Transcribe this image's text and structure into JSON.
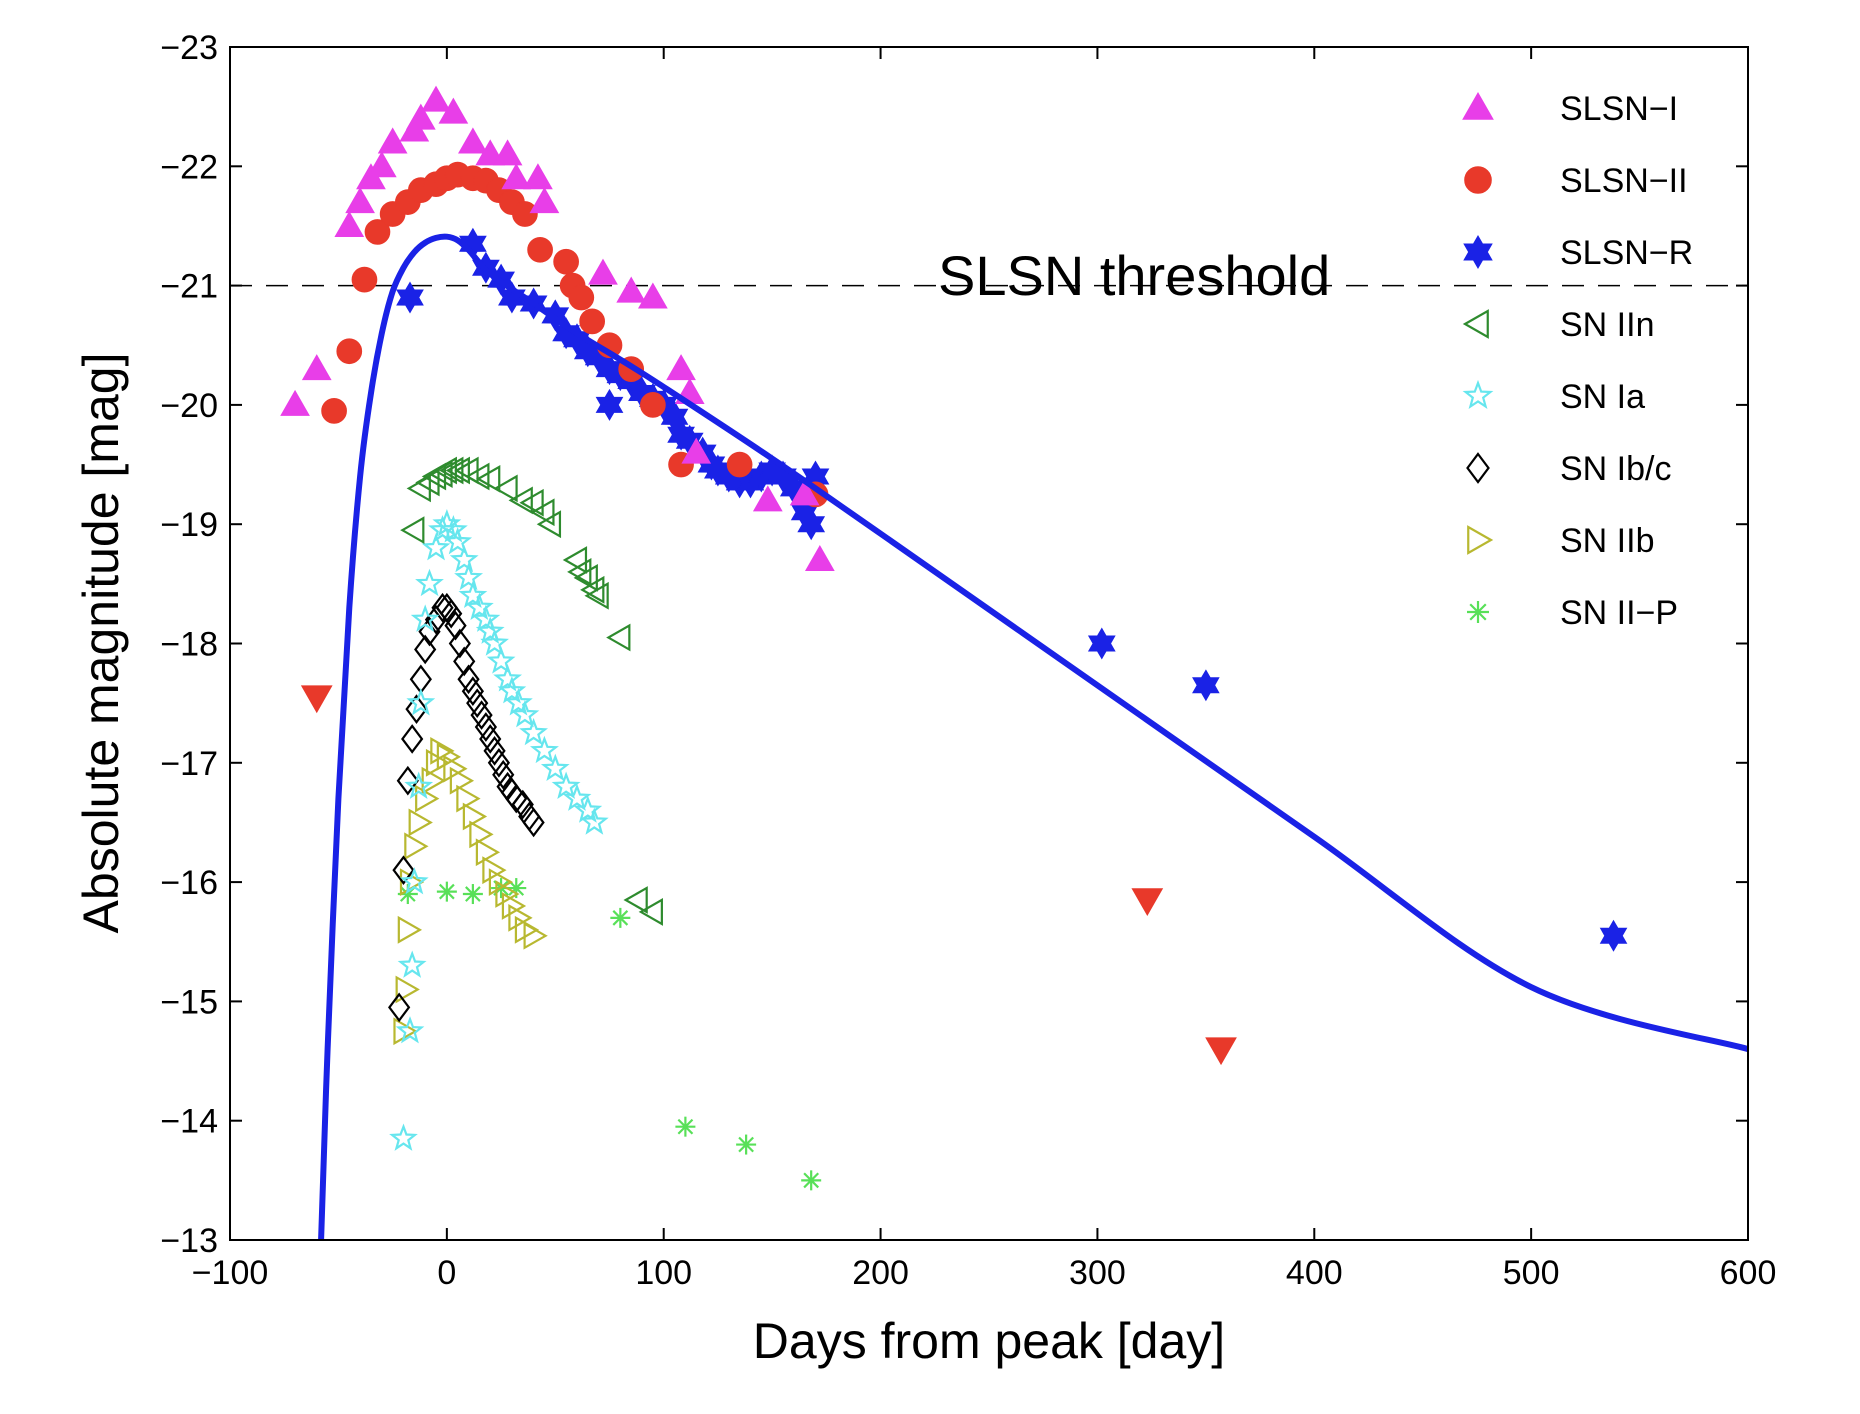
{
  "chart_data": {
    "type": "scatter",
    "xlabel": "Days from peak [day]",
    "ylabel": "Absolute magnitude [mag]",
    "xlim": [
      -100,
      600
    ],
    "ylim": [
      -13,
      -23
    ],
    "y_inverted": true,
    "grid": false,
    "legend_position": "top-right",
    "xticks": [
      -100,
      0,
      100,
      200,
      300,
      400,
      500,
      600
    ],
    "xtick_labels": [
      "−100",
      "0",
      "100",
      "200",
      "300",
      "400",
      "500",
      "600"
    ],
    "yticks": [
      -23,
      -22,
      -21,
      -20,
      -19,
      -18,
      -17,
      -16,
      -15,
      -14,
      -13
    ],
    "ytick_labels": [
      "−23",
      "−22",
      "−21",
      "−20",
      "−19",
      "−18",
      "−17",
      "−16",
      "−15",
      "−14",
      "−13"
    ],
    "threshold": {
      "value": -21,
      "label": "SLSN threshold"
    },
    "series": [
      {
        "name": "SLSN−I",
        "marker": "triangle-up",
        "color": "#e83ee8",
        "filled": true,
        "points": [
          [
            -70,
            -20
          ],
          [
            -60,
            -20.3
          ],
          [
            -45,
            -21.5
          ],
          [
            -40,
            -21.7
          ],
          [
            -35,
            -21.9
          ],
          [
            -30,
            -22
          ],
          [
            -25,
            -22.2
          ],
          [
            -15,
            -22.3
          ],
          [
            -12,
            -22.4
          ],
          [
            -5,
            -22.55
          ],
          [
            3,
            -22.45
          ],
          [
            12,
            -22.2
          ],
          [
            20,
            -22.1
          ],
          [
            28,
            -22.1
          ],
          [
            32,
            -21.9
          ],
          [
            42,
            -21.9
          ],
          [
            45,
            -21.7
          ],
          [
            72,
            -21.1
          ],
          [
            85,
            -20.95
          ],
          [
            95,
            -20.9
          ],
          [
            108,
            -20.3
          ],
          [
            112,
            -20.1
          ],
          [
            115,
            -19.6
          ],
          [
            148,
            -19.2
          ],
          [
            165,
            -19.25
          ],
          [
            172,
            -18.7
          ]
        ]
      },
      {
        "name": "SLSN−II",
        "marker": "circle",
        "color": "#e8392a",
        "filled": true,
        "points": [
          [
            -52,
            -19.95
          ],
          [
            -45,
            -20.45
          ],
          [
            -38,
            -21.05
          ],
          [
            -32,
            -21.45
          ],
          [
            -25,
            -21.6
          ],
          [
            -18,
            -21.7
          ],
          [
            -12,
            -21.8
          ],
          [
            -5,
            -21.85
          ],
          [
            0,
            -21.9
          ],
          [
            5,
            -21.93
          ],
          [
            12,
            -21.9
          ],
          [
            18,
            -21.88
          ],
          [
            24,
            -21.8
          ],
          [
            30,
            -21.7
          ],
          [
            36,
            -21.6
          ],
          [
            43,
            -21.3
          ],
          [
            55,
            -21.2
          ],
          [
            58,
            -21.0
          ],
          [
            62,
            -20.9
          ],
          [
            67,
            -20.7
          ],
          [
            75,
            -20.5
          ],
          [
            85,
            -20.3
          ],
          [
            95,
            -20
          ],
          [
            108,
            -19.5
          ],
          [
            135,
            -19.5
          ],
          [
            170,
            -19.25
          ]
        ]
      },
      {
        "name": "SLSN−R",
        "marker": "star6",
        "color": "#1a22e6",
        "filled": true,
        "points": [
          [
            -17,
            -20.9
          ],
          [
            12,
            -21.35
          ],
          [
            18,
            -21.15
          ],
          [
            25,
            -21.05
          ],
          [
            30,
            -20.9
          ],
          [
            40,
            -20.85
          ],
          [
            50,
            -20.75
          ],
          [
            55,
            -20.6
          ],
          [
            60,
            -20.55
          ],
          [
            65,
            -20.45
          ],
          [
            70,
            -20.4
          ],
          [
            75,
            -20.3
          ],
          [
            80,
            -20.25
          ],
          [
            85,
            -20.2
          ],
          [
            90,
            -20.1
          ],
          [
            95,
            -20.05
          ],
          [
            100,
            -20.0
          ],
          [
            75,
            -20.0
          ],
          [
            105,
            -19.9
          ],
          [
            108,
            -19.75
          ],
          [
            112,
            -19.7
          ],
          [
            118,
            -19.6
          ],
          [
            122,
            -19.5
          ],
          [
            125,
            -19.45
          ],
          [
            130,
            -19.4
          ],
          [
            135,
            -19.35
          ],
          [
            140,
            -19.35
          ],
          [
            145,
            -19.4
          ],
          [
            150,
            -19.45
          ],
          [
            155,
            -19.4
          ],
          [
            160,
            -19.3
          ],
          [
            165,
            -19.1
          ],
          [
            168,
            -19.0
          ],
          [
            170,
            -19.4
          ],
          [
            302,
            -18.0
          ],
          [
            350,
            -17.65
          ],
          [
            538,
            -15.55
          ]
        ]
      },
      {
        "name": "SN IIn",
        "marker": "triangle-left",
        "color": "#2e8b2e",
        "filled": false,
        "points": [
          [
            -15,
            -18.95
          ],
          [
            -12,
            -19.3
          ],
          [
            -8,
            -19.35
          ],
          [
            -5,
            -19.4
          ],
          [
            -2,
            -19.42
          ],
          [
            0,
            -19.45
          ],
          [
            3,
            -19.45
          ],
          [
            6,
            -19.45
          ],
          [
            10,
            -19.45
          ],
          [
            15,
            -19.4
          ],
          [
            20,
            -19.38
          ],
          [
            28,
            -19.3
          ],
          [
            35,
            -19.2
          ],
          [
            40,
            -19.18
          ],
          [
            45,
            -19.1
          ],
          [
            48,
            -19.0
          ],
          [
            60,
            -18.7
          ],
          [
            62,
            -18.6
          ],
          [
            65,
            -18.55
          ],
          [
            68,
            -18.45
          ],
          [
            70,
            -18.4
          ],
          [
            80,
            -18.05
          ],
          [
            88,
            -15.85
          ],
          [
            95,
            -15.75
          ]
        ]
      },
      {
        "name": "SN Ia",
        "marker": "star5",
        "color": "#66e6ee",
        "filled": false,
        "points": [
          [
            -20,
            -13.85
          ],
          [
            -17,
            -14.75
          ],
          [
            -16,
            -15.3
          ],
          [
            -15,
            -16
          ],
          [
            -13,
            -16.8
          ],
          [
            -12,
            -17.5
          ],
          [
            -10,
            -18.2
          ],
          [
            -8,
            -18.5
          ],
          [
            -5,
            -18.8
          ],
          [
            -2,
            -18.95
          ],
          [
            0,
            -19.0
          ],
          [
            3,
            -18.95
          ],
          [
            5,
            -18.85
          ],
          [
            8,
            -18.7
          ],
          [
            10,
            -18.55
          ],
          [
            12,
            -18.4
          ],
          [
            15,
            -18.3
          ],
          [
            18,
            -18.2
          ],
          [
            20,
            -18.1
          ],
          [
            22,
            -18.0
          ],
          [
            25,
            -17.85
          ],
          [
            28,
            -17.7
          ],
          [
            30,
            -17.6
          ],
          [
            33,
            -17.5
          ],
          [
            36,
            -17.4
          ],
          [
            40,
            -17.25
          ],
          [
            45,
            -17.1
          ],
          [
            50,
            -16.95
          ],
          [
            55,
            -16.8
          ],
          [
            60,
            -16.7
          ],
          [
            65,
            -16.6
          ],
          [
            68,
            -16.5
          ]
        ]
      },
      {
        "name": "SN Ib/c",
        "marker": "diamond",
        "color": "#000000",
        "filled": false,
        "points": [
          [
            -22,
            -14.95
          ],
          [
            -20,
            -16.1
          ],
          [
            -18,
            -16.85
          ],
          [
            -16,
            -17.2
          ],
          [
            -14,
            -17.45
          ],
          [
            -12,
            -17.7
          ],
          [
            -10,
            -17.95
          ],
          [
            -8,
            -18.1
          ],
          [
            -5,
            -18.2
          ],
          [
            -2,
            -18.3
          ],
          [
            0,
            -18.3
          ],
          [
            2,
            -18.25
          ],
          [
            4,
            -18.15
          ],
          [
            6,
            -18.0
          ],
          [
            8,
            -17.85
          ],
          [
            10,
            -17.7
          ],
          [
            12,
            -17.6
          ],
          [
            14,
            -17.5
          ],
          [
            16,
            -17.4
          ],
          [
            18,
            -17.3
          ],
          [
            20,
            -17.2
          ],
          [
            22,
            -17.1
          ],
          [
            24,
            -17.0
          ],
          [
            26,
            -16.9
          ],
          [
            28,
            -16.8
          ],
          [
            30,
            -16.75
          ],
          [
            32,
            -16.7
          ],
          [
            35,
            -16.65
          ],
          [
            38,
            -16.55
          ],
          [
            40,
            -16.5
          ]
        ]
      },
      {
        "name": "SN IIb",
        "marker": "triangle-right",
        "color": "#b8b830",
        "filled": false,
        "points": [
          [
            -20,
            -14.75
          ],
          [
            -19,
            -15.1
          ],
          [
            -18,
            -15.6
          ],
          [
            -17,
            -16.0
          ],
          [
            -15,
            -16.3
          ],
          [
            -13,
            -16.5
          ],
          [
            -10,
            -16.7
          ],
          [
            -7,
            -16.85
          ],
          [
            -5,
            -17.0
          ],
          [
            -3,
            -17.1
          ],
          [
            0,
            -17.05
          ],
          [
            3,
            -16.95
          ],
          [
            6,
            -16.85
          ],
          [
            9,
            -16.7
          ],
          [
            12,
            -16.55
          ],
          [
            15,
            -16.4
          ],
          [
            18,
            -16.25
          ],
          [
            21,
            -16.1
          ],
          [
            24,
            -16.0
          ],
          [
            27,
            -15.9
          ],
          [
            30,
            -15.8
          ],
          [
            33,
            -15.7
          ],
          [
            36,
            -15.6
          ],
          [
            40,
            -15.55
          ]
        ]
      },
      {
        "name": "SN II−P",
        "marker": "asterisk",
        "color": "#58e058",
        "filled": false,
        "points": [
          [
            -18,
            -15.9
          ],
          [
            0,
            -15.92
          ],
          [
            12,
            -15.9
          ],
          [
            25,
            -15.95
          ],
          [
            32,
            -15.95
          ],
          [
            80,
            -15.7
          ],
          [
            110,
            -13.95
          ],
          [
            138,
            -13.8
          ],
          [
            168,
            -13.5
          ]
        ]
      }
    ],
    "upper_limits": {
      "marker": "triangle-down",
      "color": "#e8392a",
      "filled": true,
      "points": [
        [
          -60,
          -17.55
        ],
        [
          323,
          -15.85
        ],
        [
          357,
          -14.6
        ]
      ]
    },
    "model_curve": {
      "color": "#1a22e6",
      "points": [
        [
          -58,
          -13
        ],
        [
          -55,
          -14.6
        ],
        [
          -50,
          -16.7
        ],
        [
          -45,
          -18.3
        ],
        [
          -40,
          -19.4
        ],
        [
          -35,
          -20.1
        ],
        [
          -30,
          -20.6
        ],
        [
          -25,
          -20.95
        ],
        [
          -20,
          -21.15
        ],
        [
          -15,
          -21.28
        ],
        [
          -10,
          -21.36
        ],
        [
          -5,
          -21.4
        ],
        [
          0,
          -21.41
        ],
        [
          5,
          -21.38
        ],
        [
          10,
          -21.3
        ],
        [
          20,
          -21.1
        ],
        [
          40,
          -20.85
        ],
        [
          60,
          -20.6
        ],
        [
          80,
          -20.38
        ],
        [
          100,
          -20.15
        ],
        [
          150,
          -19.55
        ],
        [
          200,
          -18.92
        ],
        [
          300,
          -17.65
        ],
        [
          400,
          -16.38
        ],
        [
          500,
          -15.12
        ],
        [
          600,
          -14.6
        ]
      ]
    }
  }
}
